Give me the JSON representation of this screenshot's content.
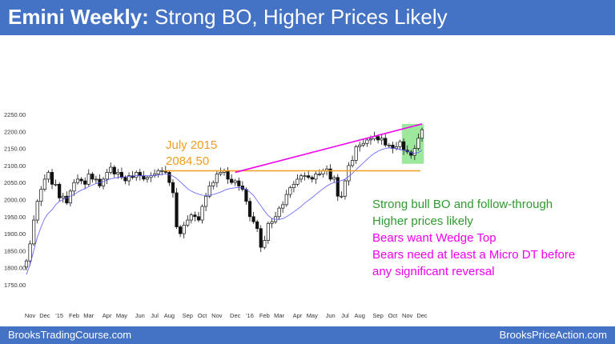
{
  "header": {
    "title_bold": "Emini Weekly:",
    "title_rest": " Strong BO, Higher Prices Likely"
  },
  "footer": {
    "left": "BrooksTradingCourse.com",
    "right": "BrooksPriceAction.com"
  },
  "colors": {
    "header_bg": "#4472c4",
    "orange": "#f39c1f",
    "magenta": "#ee00ee",
    "green": "#2e9b2e",
    "ma": "#5b5bff",
    "highlight": "#7ee07e"
  },
  "chart_data": {
    "type": "candlestick",
    "ylim": [
      1750,
      2250
    ],
    "yticks": [
      1750,
      1800,
      1850,
      1900,
      1950,
      2000,
      2050,
      2100,
      2150,
      2200,
      2250
    ],
    "ytick_labels": [
      "1750.00",
      "1800.00",
      "1850.00",
      "1900.00",
      "1950.00",
      "2000.00",
      "2050.00",
      "2100.00",
      "2150.00",
      "2200.00",
      "2250.00"
    ],
    "xlabels": [
      "Nov",
      "Dec",
      "'15",
      "Feb",
      "Mar",
      "Apr",
      "May",
      "Jun",
      "Jul",
      "Aug",
      "Sep",
      "Oct",
      "Nov",
      "Dec",
      "'16",
      "Feb",
      "Mar",
      "Apr",
      "May",
      "Jun",
      "Jul",
      "Aug",
      "Sep",
      "Oct",
      "Nov",
      "Dec"
    ],
    "xlabel_idx": [
      1,
      5,
      9,
      13,
      17,
      22,
      26,
      31,
      35,
      39,
      44,
      48,
      52,
      57,
      61,
      65,
      69,
      74,
      78,
      83,
      87,
      91,
      96,
      100,
      104,
      108
    ],
    "num_bars": 109,
    "closes": [
      1820,
      1870,
      1940,
      1995,
      2030,
      2060,
      2080,
      2045,
      2045,
      2005,
      2010,
      1990,
      2025,
      2050,
      2060,
      2055,
      2045,
      2075,
      2060,
      2060,
      2040,
      2060,
      2080,
      2095,
      2075,
      2080,
      2065,
      2055,
      2070,
      2065,
      2080,
      2070,
      2060,
      2065,
      2070,
      2075,
      2085,
      2085,
      2080,
      2050,
      2020,
      1920,
      1900,
      1925,
      1940,
      1955,
      1950,
      1940,
      1980,
      2010,
      2040,
      2050,
      2075,
      2080,
      2085,
      2060,
      2050,
      2055,
      2040,
      2030,
      1995,
      1950,
      1935,
      1915,
      1860,
      1880,
      1930,
      1935,
      1950,
      1975,
      1985,
      2015,
      2035,
      2045,
      2060,
      2070,
      2070,
      2065,
      2060,
      2075,
      2075,
      2085,
      2090,
      2060,
      2065,
      2010,
      2010,
      2055,
      2100,
      2115,
      2155,
      2160,
      2165,
      2175,
      2178,
      2185,
      2175,
      2180,
      2160,
      2160,
      2150,
      2155,
      2170,
      2145,
      2140,
      2130,
      2150,
      2180,
      2205
    ],
    "ma": [
      1780,
      1810,
      1850,
      1890,
      1920,
      1945,
      1960,
      1970,
      1985,
      1995,
      2000,
      2005,
      2010,
      2015,
      2022,
      2028,
      2032,
      2038,
      2043,
      2047,
      2050,
      2053,
      2057,
      2061,
      2063,
      2065,
      2066,
      2067,
      2068,
      2069,
      2070,
      2070,
      2070,
      2070,
      2070,
      2071,
      2072,
      2074,
      2075,
      2073,
      2069,
      2062,
      2052,
      2042,
      2032,
      2025,
      2020,
      2016,
      2013,
      2012,
      2013,
      2015,
      2018,
      2022,
      2027,
      2031,
      2033,
      2035,
      2036,
      2034,
      2030,
      2022,
      2012,
      1997,
      1982,
      1967,
      1953,
      1945,
      1942,
      1942,
      1944,
      1950,
      1956,
      1964,
      1972,
      1980,
      1990,
      1998,
      2006,
      2015,
      2024,
      2032,
      2040,
      2046,
      2050,
      2052,
      2056,
      2060,
      2068,
      2077,
      2088,
      2098,
      2108,
      2118,
      2128,
      2136,
      2142,
      2147,
      2150,
      2152,
      2151,
      2149,
      2147,
      2145,
      2142,
      2138,
      2136,
      2138,
      2145
    ],
    "support_line": {
      "value": 2084.5
    },
    "trend_line": {
      "from": {
        "bar": 57,
        "value": 2080
      },
      "to": {
        "bar": 108,
        "value": 2222
      }
    },
    "highlight_range": {
      "from_bar": 103,
      "to_bar": 108,
      "low": 2105,
      "high": 2222
    },
    "annotations": [
      {
        "text": "July 2015",
        "color": "orange"
      },
      {
        "text": "2084.50",
        "color": "orange"
      },
      {
        "text": "Strong bull BO and follow-through",
        "color": "green"
      },
      {
        "text": "Higher prices likely",
        "color": "green"
      },
      {
        "text": "Bears want Wedge Top",
        "color": "magenta"
      },
      {
        "text": "Bears need at least a Micro DT before",
        "color": "magenta"
      },
      {
        "text": "any significant reversal",
        "color": "magenta"
      }
    ]
  }
}
